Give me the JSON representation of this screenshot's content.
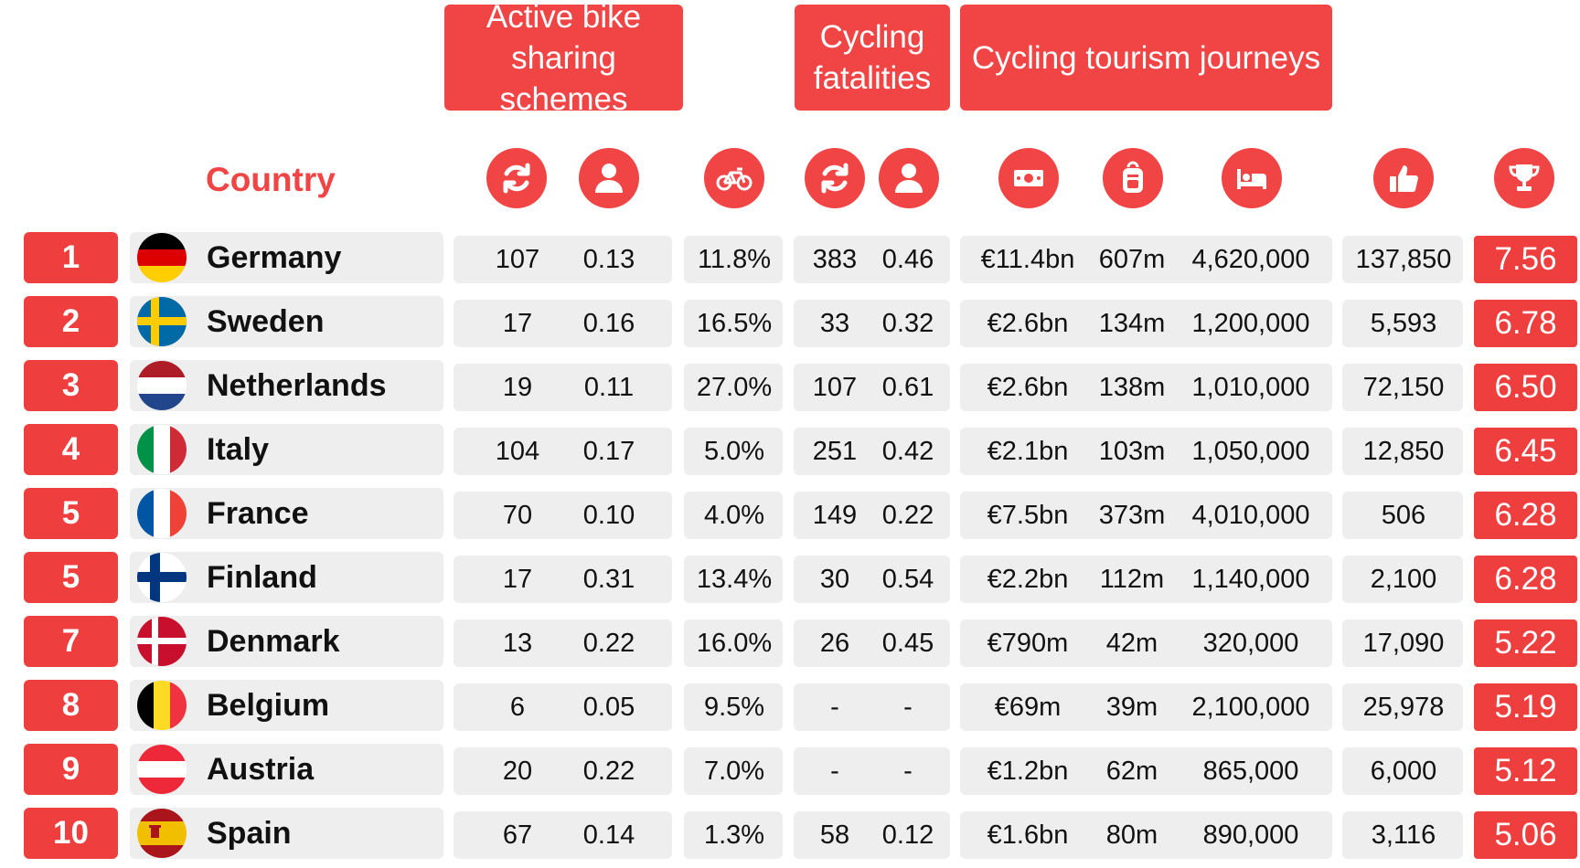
{
  "headers": {
    "bike_sharing": "Active bike\nsharing schemes",
    "fatalities": "Cycling\nfatalities",
    "tourism": "Cycling tourism journeys"
  },
  "country_label": "Country",
  "icons": [
    "sync-icon",
    "person-icon",
    "bicycle-icon",
    "sync-icon",
    "person-icon",
    "money-icon",
    "backpack-icon",
    "bed-icon",
    "thumbs-up-icon",
    "trophy-icon"
  ],
  "colors": {
    "accent": "#f14444",
    "panel": "#eeeeee"
  },
  "columns": [
    "schemes",
    "schemes_per_capita",
    "cycling_share",
    "fatalities",
    "fatalities_per_capita",
    "tourism_value",
    "tourism_journeys",
    "tourism_overnight",
    "likes",
    "score"
  ],
  "rows": [
    {
      "rank": "1",
      "country": "Germany",
      "flag": "germany-flag",
      "values": [
        "107",
        "0.13",
        "11.8%",
        "383",
        "0.46",
        "€11.4bn",
        "607m",
        "4,620,000",
        "137,850",
        "7.56"
      ]
    },
    {
      "rank": "2",
      "country": "Sweden",
      "flag": "sweden-flag",
      "values": [
        "17",
        "0.16",
        "16.5%",
        "33",
        "0.32",
        "€2.6bn",
        "134m",
        "1,200,000",
        "5,593",
        "6.78"
      ]
    },
    {
      "rank": "3",
      "country": "Netherlands",
      "flag": "netherlands-flag",
      "values": [
        "19",
        "0.11",
        "27.0%",
        "107",
        "0.61",
        "€2.6bn",
        "138m",
        "1,010,000",
        "72,150",
        "6.50"
      ]
    },
    {
      "rank": "4",
      "country": "Italy",
      "flag": "italy-flag",
      "values": [
        "104",
        "0.17",
        "5.0%",
        "251",
        "0.42",
        "€2.1bn",
        "103m",
        "1,050,000",
        "12,850",
        "6.45"
      ]
    },
    {
      "rank": "5",
      "country": "France",
      "flag": "france-flag",
      "values": [
        "70",
        "0.10",
        "4.0%",
        "149",
        "0.22",
        "€7.5bn",
        "373m",
        "4,010,000",
        "506",
        "6.28"
      ]
    },
    {
      "rank": "5",
      "country": "Finland",
      "flag": "finland-flag",
      "values": [
        "17",
        "0.31",
        "13.4%",
        "30",
        "0.54",
        "€2.2bn",
        "112m",
        "1,140,000",
        "2,100",
        "6.28"
      ]
    },
    {
      "rank": "7",
      "country": "Denmark",
      "flag": "denmark-flag",
      "values": [
        "13",
        "0.22",
        "16.0%",
        "26",
        "0.45",
        "€790m",
        "42m",
        "320,000",
        "17,090",
        "5.22"
      ]
    },
    {
      "rank": "8",
      "country": "Belgium",
      "flag": "belgium-flag",
      "values": [
        "6",
        "0.05",
        "9.5%",
        "-",
        "-",
        "€69m",
        "39m",
        "2,100,000",
        "25,978",
        "5.19"
      ]
    },
    {
      "rank": "9",
      "country": "Austria",
      "flag": "austria-flag",
      "values": [
        "20",
        "0.22",
        "7.0%",
        "-",
        "-",
        "€1.2bn",
        "62m",
        "865,000",
        "6,000",
        "5.12"
      ]
    },
    {
      "rank": "10",
      "country": "Spain",
      "flag": "spain-flag",
      "values": [
        "67",
        "0.14",
        "1.3%",
        "58",
        "0.12",
        "€1.6bn",
        "80m",
        "890,000",
        "3,116",
        "5.06"
      ]
    }
  ]
}
